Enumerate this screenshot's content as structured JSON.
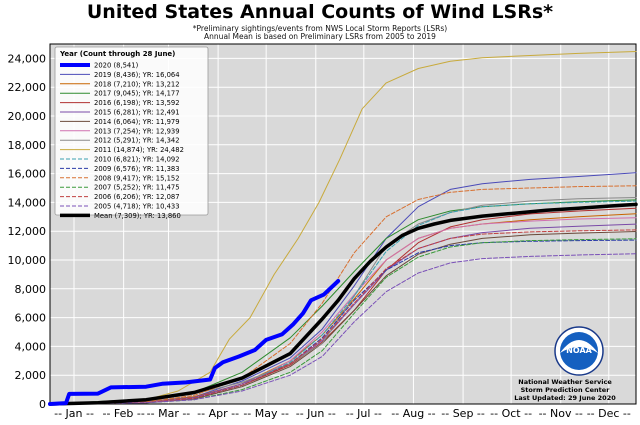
{
  "header": {
    "title": "United States Annual Counts of Wind LSRs*",
    "subtitle1": "*Preliminary sightings/events from NWS Local Storm Reports (LSRs)",
    "subtitle2": "Annual Mean is based on Preliminary LSRs from 2005 to 2019"
  },
  "credit": {
    "line1": "National Weather Service",
    "line2": "Storm Prediction Center",
    "line3": "Last Updated: 29 June 2020"
  },
  "logo": {
    "text": "NOAA",
    "icon": "noaa-logo"
  },
  "chart_data": {
    "type": "line",
    "title": "United States Annual Counts of Wind LSRs*",
    "xlabel": "",
    "ylabel": "",
    "xlim": [
      0,
      366
    ],
    "ylim": [
      0,
      25000
    ],
    "yticks": [
      0,
      2000,
      4000,
      6000,
      8000,
      10000,
      12000,
      14000,
      16000,
      18000,
      20000,
      22000,
      24000
    ],
    "ytick_labels": [
      "0",
      "2,000",
      "4,000",
      "6,000",
      "8,000",
      "10,000",
      "12,000",
      "14,000",
      "16,000",
      "18,000",
      "20,000",
      "22,000",
      "24,000"
    ],
    "xtick_labels": [
      "-- Jan --",
      "-- Feb --",
      "-- Mar --",
      "-- Apr --",
      "-- May --",
      "-- Jun --",
      "-- Jul --",
      "-- Aug --",
      "-- Sep --",
      "-- Oct --",
      "-- Nov --",
      "-- Dec --"
    ],
    "xtick_days": [
      15,
      46,
      74,
      105,
      135,
      166,
      196,
      227,
      258,
      288,
      319,
      349
    ],
    "grid": true,
    "legend_title": "Year (Count through 28 June)",
    "legend_position": "top-left",
    "series": [
      {
        "name": "2020 (8,541)",
        "color": "#0000ff",
        "width": 4,
        "dash": "",
        "x": [
          0,
          10,
          12,
          30,
          38,
          60,
          70,
          85,
          100,
          103,
          108,
          118,
          128,
          135,
          145,
          152,
          158,
          163,
          171,
          180
        ],
        "y": [
          0,
          60,
          700,
          720,
          1150,
          1200,
          1400,
          1500,
          1700,
          2500,
          2900,
          3300,
          3750,
          4450,
          4850,
          5550,
          6300,
          7200,
          7600,
          8541
        ]
      },
      {
        "name": "2019 (8,436); YR: 16,064",
        "color": "#4a4ab8",
        "width": 1,
        "dash": "",
        "x": [
          0,
          60,
          90,
          120,
          150,
          170,
          190,
          210,
          230,
          250,
          270,
          300,
          330,
          366
        ],
        "y": [
          0,
          150,
          500,
          1600,
          3200,
          5200,
          8200,
          11500,
          13700,
          14900,
          15300,
          15600,
          15800,
          16064
        ]
      },
      {
        "name": "2018 (7,210); YR: 13,212",
        "color": "#c86400",
        "width": 1,
        "dash": "",
        "x": [
          0,
          60,
          90,
          120,
          150,
          170,
          190,
          210,
          230,
          250,
          270,
          300,
          330,
          366
        ],
        "y": [
          0,
          100,
          500,
          1400,
          3000,
          4800,
          7300,
          10000,
          11500,
          12200,
          12500,
          12800,
          13000,
          13212
        ]
      },
      {
        "name": "2017 (9,045); YR: 14,177",
        "color": "#2e8b2e",
        "width": 1,
        "dash": "",
        "x": [
          0,
          60,
          90,
          120,
          150,
          170,
          190,
          210,
          230,
          250,
          270,
          300,
          330,
          366
        ],
        "y": [
          0,
          350,
          800,
          2200,
          4600,
          6800,
          9200,
          11500,
          12800,
          13400,
          13700,
          13900,
          14050,
          14177
        ]
      },
      {
        "name": "2016 (6,198); YR: 13,592",
        "color": "#b03030",
        "width": 1,
        "dash": "",
        "x": [
          0,
          60,
          90,
          120,
          150,
          170,
          190,
          210,
          230,
          250,
          270,
          300,
          330,
          366
        ],
        "y": [
          0,
          120,
          400,
          1300,
          2700,
          4300,
          6500,
          9300,
          11200,
          12300,
          12800,
          13200,
          13400,
          13592
        ]
      },
      {
        "name": "2015 (6,281); YR: 12,491",
        "color": "#7a4aa8",
        "width": 1,
        "dash": "",
        "x": [
          0,
          60,
          90,
          120,
          150,
          170,
          190,
          210,
          230,
          250,
          270,
          300,
          330,
          366
        ],
        "y": [
          0,
          100,
          450,
          1400,
          2800,
          4400,
          6900,
          9300,
          10800,
          11500,
          11900,
          12200,
          12350,
          12491
        ]
      },
      {
        "name": "2014 (6,064); YR: 11,979",
        "color": "#6b4a3a",
        "width": 1,
        "dash": "",
        "x": [
          0,
          60,
          90,
          120,
          150,
          170,
          190,
          210,
          230,
          250,
          270,
          300,
          330,
          366
        ],
        "y": [
          0,
          80,
          350,
          1200,
          2600,
          4200,
          6500,
          8900,
          10400,
          11100,
          11500,
          11750,
          11870,
          11979
        ]
      },
      {
        "name": "2013 (7,254); YR: 12,939",
        "color": "#d070b0",
        "width": 1,
        "dash": "",
        "x": [
          0,
          60,
          90,
          120,
          150,
          170,
          190,
          210,
          230,
          250,
          270,
          300,
          330,
          366
        ],
        "y": [
          0,
          110,
          400,
          1300,
          3000,
          5000,
          7600,
          10000,
          11500,
          12200,
          12500,
          12700,
          12850,
          12939
        ]
      },
      {
        "name": "2012 (5,291); YR: 14,342",
        "color": "#8a8a8a",
        "width": 1,
        "dash": "",
        "x": [
          0,
          60,
          90,
          120,
          150,
          170,
          190,
          210,
          230,
          250,
          270,
          300,
          330,
          366
        ],
        "y": [
          0,
          200,
          700,
          1500,
          2800,
          4200,
          7500,
          11000,
          12500,
          13300,
          13800,
          14100,
          14250,
          14342
        ]
      },
      {
        "name": "2011 (14,874); YR: 24,482",
        "color": "#c8aa3c",
        "width": 1,
        "dash": "",
        "x": [
          0,
          60,
          80,
          100,
          112,
          125,
          140,
          155,
          168,
          181,
          195,
          210,
          230,
          250,
          270,
          300,
          330,
          366
        ],
        "y": [
          0,
          300,
          900,
          2200,
          4500,
          6000,
          9000,
          11500,
          14000,
          17000,
          20500,
          22300,
          23300,
          23800,
          24050,
          24200,
          24350,
          24482
        ]
      },
      {
        "name": "2010 (6,821); YR: 14,092",
        "color": "#3aa0b0",
        "width": 1,
        "dash": "4,2",
        "x": [
          0,
          60,
          90,
          120,
          150,
          170,
          190,
          210,
          230,
          250,
          270,
          300,
          330,
          366
        ],
        "y": [
          0,
          100,
          400,
          1300,
          2900,
          4800,
          7500,
          10600,
          12400,
          13300,
          13700,
          13900,
          14000,
          14092
        ]
      },
      {
        "name": "2009 (6,576); YR: 11,383",
        "color": "#2a3aa8",
        "width": 1,
        "dash": "4,2",
        "x": [
          0,
          60,
          90,
          120,
          150,
          170,
          190,
          210,
          230,
          250,
          270,
          300,
          330,
          366
        ],
        "y": [
          0,
          100,
          400,
          1300,
          2800,
          4600,
          7200,
          9300,
          10500,
          11000,
          11200,
          11300,
          11350,
          11383
        ]
      },
      {
        "name": "2008 (9,417); YR: 15,152",
        "color": "#d87030",
        "width": 1,
        "dash": "4,2",
        "x": [
          0,
          60,
          90,
          120,
          150,
          170,
          190,
          210,
          230,
          250,
          270,
          300,
          330,
          366
        ],
        "y": [
          0,
          150,
          600,
          1800,
          4200,
          7000,
          10500,
          13000,
          14200,
          14700,
          14900,
          15000,
          15100,
          15152
        ]
      },
      {
        "name": "2007 (5,252); YR: 11,475",
        "color": "#3a9a3a",
        "width": 1,
        "dash": "4,2",
        "x": [
          0,
          60,
          90,
          120,
          150,
          170,
          190,
          210,
          230,
          250,
          270,
          300,
          330,
          366
        ],
        "y": [
          0,
          80,
          300,
          1000,
          2200,
          3700,
          6300,
          8800,
          10200,
          10900,
          11200,
          11350,
          11420,
          11475
        ]
      },
      {
        "name": "2006 (6,206); YR: 12,087",
        "color": "#c04040",
        "width": 1,
        "dash": "4,2",
        "x": [
          0,
          60,
          90,
          120,
          150,
          170,
          190,
          210,
          230,
          250,
          270,
          300,
          330,
          366
        ],
        "y": [
          0,
          100,
          400,
          1300,
          2800,
          4500,
          7000,
          9400,
          10800,
          11500,
          11800,
          11950,
          12030,
          12087
        ]
      },
      {
        "name": "2005 (4,718); YR: 10,433",
        "color": "#7a50b8",
        "width": 1,
        "dash": "4,2",
        "x": [
          0,
          60,
          90,
          120,
          150,
          170,
          190,
          210,
          230,
          250,
          270,
          300,
          330,
          366
        ],
        "y": [
          0,
          80,
          300,
          900,
          2000,
          3300,
          5700,
          7800,
          9100,
          9800,
          10100,
          10250,
          10350,
          10433
        ]
      },
      {
        "name": "Mean (7,309); YR: 13,860",
        "color": "#000000",
        "width": 3.5,
        "dash": "",
        "x": [
          0,
          30,
          60,
          90,
          120,
          150,
          170,
          180,
          190,
          200,
          210,
          220,
          230,
          240,
          250,
          270,
          290,
          310,
          330,
          350,
          366
        ],
        "y": [
          0,
          80,
          300,
          800,
          1800,
          3500,
          5900,
          7200,
          8700,
          9900,
          10900,
          11700,
          12200,
          12500,
          12750,
          13050,
          13250,
          13450,
          13600,
          13750,
          13860
        ]
      }
    ]
  }
}
